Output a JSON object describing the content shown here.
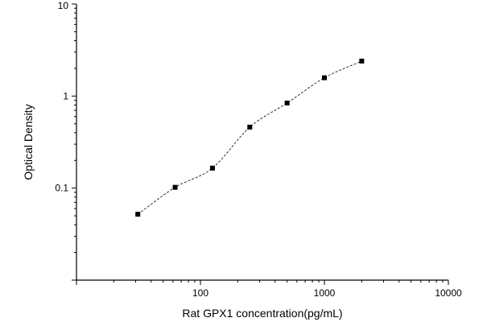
{
  "chart_data": {
    "type": "scatter",
    "title": "",
    "xlabel": "Rat GPX1 concentration(pg/mL)",
    "ylabel": "Optical Density",
    "x_scale": "log",
    "y_scale": "log",
    "xlim": [
      10,
      10000
    ],
    "ylim": [
      0.01,
      10
    ],
    "x_tick_labels": [
      "100",
      "1000",
      "10000"
    ],
    "y_tick_labels": [
      "0.1",
      "1",
      "10"
    ],
    "x_tick_values": [
      100,
      1000,
      10000
    ],
    "y_tick_values": [
      0.1,
      1,
      10
    ],
    "grid": false,
    "legend": "none",
    "fit_line": "dashed",
    "marker": "square",
    "series": [
      {
        "x": [
          31.25,
          62.5,
          125,
          250,
          500,
          1000,
          2000
        ],
        "y": [
          0.052,
          0.102,
          0.165,
          0.46,
          0.84,
          1.58,
          2.4
        ]
      }
    ]
  }
}
